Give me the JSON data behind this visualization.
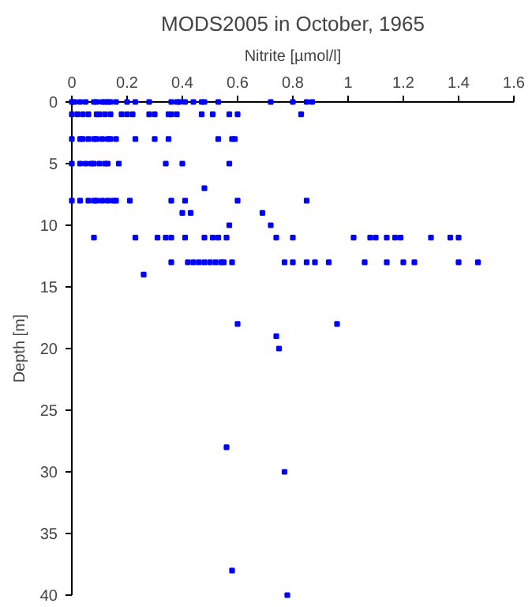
{
  "chart_data": {
    "type": "scatter",
    "title": "MODS2005 in October, 1965",
    "xlabel": "Nitrite [µmol/l]",
    "ylabel": "Depth [m]",
    "xlim": [
      0,
      1.6
    ],
    "xticks": [
      0,
      0.2,
      0.4,
      0.6,
      0.8,
      1,
      1.2,
      1.4,
      1.6
    ],
    "ylim": [
      40,
      0
    ],
    "yticks": [
      0,
      5,
      10,
      15,
      20,
      25,
      30,
      35,
      40
    ],
    "grid": false,
    "marker": "square",
    "series": [
      {
        "color": "#0000ff",
        "x": [
          0,
          0.01,
          0.03,
          0.05,
          0.08,
          0.09,
          0.11,
          0.12,
          0.13,
          0.14,
          0.16,
          0.2,
          0.23,
          0.28,
          0.36,
          0.38,
          0.39,
          0.41,
          0.44,
          0.47,
          0.48,
          0.53,
          0.72,
          0.8,
          0.85,
          0.87,
          0,
          0.02,
          0.04,
          0.06,
          0.09,
          0.1,
          0.12,
          0.14,
          0.18,
          0.2,
          0.22,
          0.28,
          0.3,
          0.35,
          0.36,
          0.38,
          0.47,
          0.51,
          0.57,
          0.6,
          0.83,
          0,
          0.03,
          0.04,
          0.06,
          0.08,
          0.09,
          0.11,
          0.13,
          0.14,
          0.16,
          0.23,
          0.3,
          0.35,
          0.53,
          0.58,
          0.59,
          0,
          0.03,
          0.05,
          0.07,
          0.08,
          0.1,
          0.12,
          0.13,
          0.17,
          0.34,
          0.4,
          0.57,
          0.48,
          0,
          0.03,
          0.06,
          0.08,
          0.09,
          0.11,
          0.13,
          0.15,
          0.16,
          0.21,
          0.36,
          0.41,
          0.6,
          0.85,
          0.4,
          0.43,
          0.69,
          0.57,
          0.72,
          0.08,
          0.23,
          0.31,
          0.34,
          0.36,
          0.41,
          0.48,
          0.51,
          0.53,
          0.56,
          0.74,
          0.8,
          1.02,
          1.08,
          1.1,
          1.14,
          1.17,
          1.19,
          1.3,
          1.37,
          1.4,
          0.36,
          0.42,
          0.44,
          0.46,
          0.48,
          0.5,
          0.52,
          0.54,
          0.55,
          0.58,
          0.77,
          0.8,
          0.85,
          0.88,
          0.93,
          1.06,
          1.14,
          1.2,
          1.24,
          1.4,
          1.47,
          0.26,
          0.6,
          0.96,
          0.74,
          0.75,
          0.56,
          0.77,
          0.58,
          0.78
        ],
        "values": [
          0,
          0,
          0,
          0,
          0,
          0,
          0,
          0,
          0,
          0,
          0,
          0,
          0,
          0,
          0,
          0,
          0,
          0,
          0,
          0,
          0,
          0,
          0,
          0,
          0,
          0,
          1,
          1,
          1,
          1,
          1,
          1,
          1,
          1,
          1,
          1,
          1,
          1,
          1,
          1,
          1,
          1,
          1,
          1,
          1,
          1,
          1,
          3,
          3,
          3,
          3,
          3,
          3,
          3,
          3,
          3,
          3,
          3,
          3,
          3,
          3,
          3,
          3,
          5,
          5,
          5,
          5,
          5,
          5,
          5,
          5,
          5,
          5,
          5,
          5,
          7,
          8,
          8,
          8,
          8,
          8,
          8,
          8,
          8,
          8,
          8,
          8,
          8,
          8,
          8,
          9,
          9,
          9,
          10,
          10,
          11,
          11,
          11,
          11,
          11,
          11,
          11,
          11,
          11,
          11,
          11,
          11,
          11,
          11,
          11,
          11,
          11,
          11,
          11,
          11,
          11,
          13,
          13,
          13,
          13,
          13,
          13,
          13,
          13,
          13,
          13,
          13,
          13,
          13,
          13,
          13,
          13,
          13,
          13,
          13,
          13,
          13,
          14,
          18,
          18,
          19,
          20,
          28,
          30,
          38,
          40
        ]
      }
    ]
  }
}
